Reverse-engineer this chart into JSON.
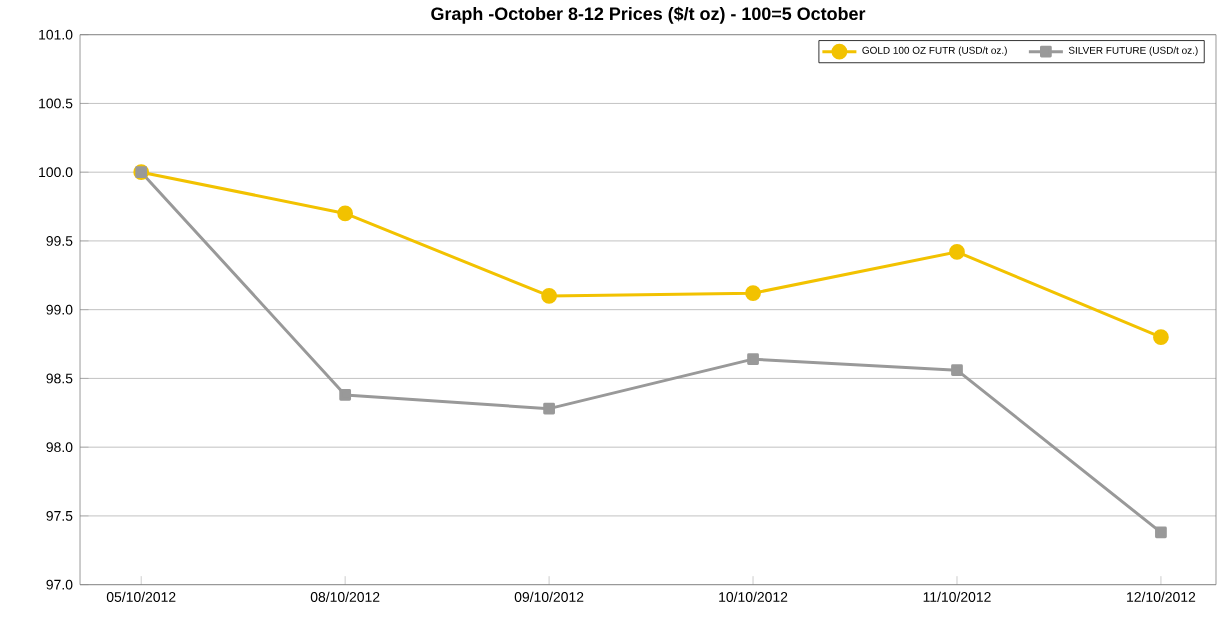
{
  "chart_data": {
    "type": "line",
    "title": "Graph -October 8-12 Prices ($/t oz) - 100=5 October",
    "categories": [
      "05/10/2012",
      "08/10/2012",
      "09/10/2012",
      "10/10/2012",
      "11/10/2012",
      "12/10/2012"
    ],
    "series": [
      {
        "name": "GOLD 100 OZ FUTR (USD/t oz.)",
        "color": "#f2c200",
        "marker": "circle",
        "values": [
          100.0,
          99.7,
          99.1,
          99.12,
          99.42,
          98.8
        ]
      },
      {
        "name": "SILVER FUTURE (USD/t oz.)",
        "color": "#999999",
        "marker": "square",
        "values": [
          100.0,
          98.38,
          98.28,
          98.64,
          98.56,
          97.38
        ]
      }
    ],
    "ylim": [
      97,
      101
    ],
    "yticks": [
      {
        "value": 97,
        "label": "97.0"
      },
      {
        "value": 97.5,
        "label": "97.5"
      },
      {
        "value": 98,
        "label": "98.0"
      },
      {
        "value": 98.5,
        "label": "98.5"
      },
      {
        "value": 99,
        "label": "99.0"
      },
      {
        "value": 99.5,
        "label": "99.5"
      },
      {
        "value": 100,
        "label": "100.0"
      },
      {
        "value": 100.5,
        "label": "100.5"
      },
      {
        "value": 101,
        "label": "101.0"
      }
    ],
    "grid": "y",
    "legend": "top right",
    "line_style": "solid"
  }
}
